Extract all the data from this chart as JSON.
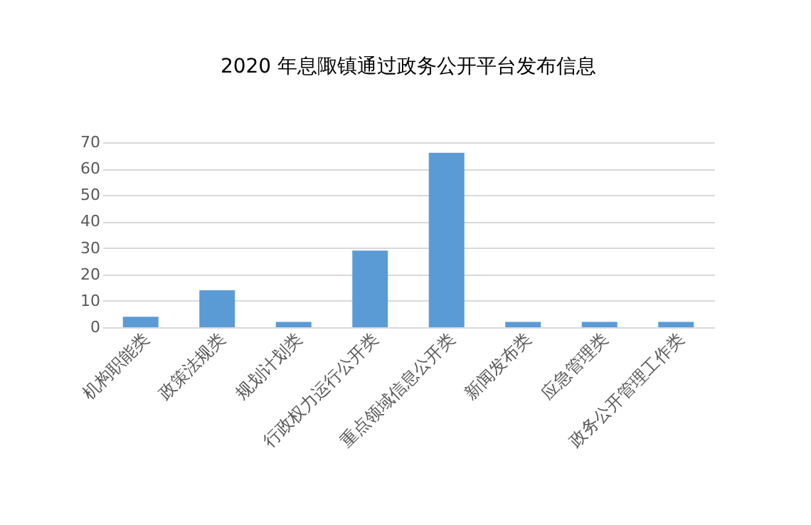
{
  "chart_data": {
    "type": "bar",
    "title": "2020 年息陬镇通过政务公开平台发布信息",
    "categories": [
      "机构职能类",
      "政策法规类",
      "规划计划类",
      "行政权力运行公开类",
      "重点领域信息公开类",
      "新闻发布类",
      "应急管理类",
      "政务公开管理工作类"
    ],
    "values": [
      4,
      14,
      2,
      29,
      66,
      2,
      2,
      2
    ],
    "color": "#5b9bd5",
    "ylim": [
      0,
      70
    ],
    "yticks": [
      0,
      10,
      20,
      30,
      40,
      50,
      60,
      70
    ],
    "grid": "y"
  }
}
